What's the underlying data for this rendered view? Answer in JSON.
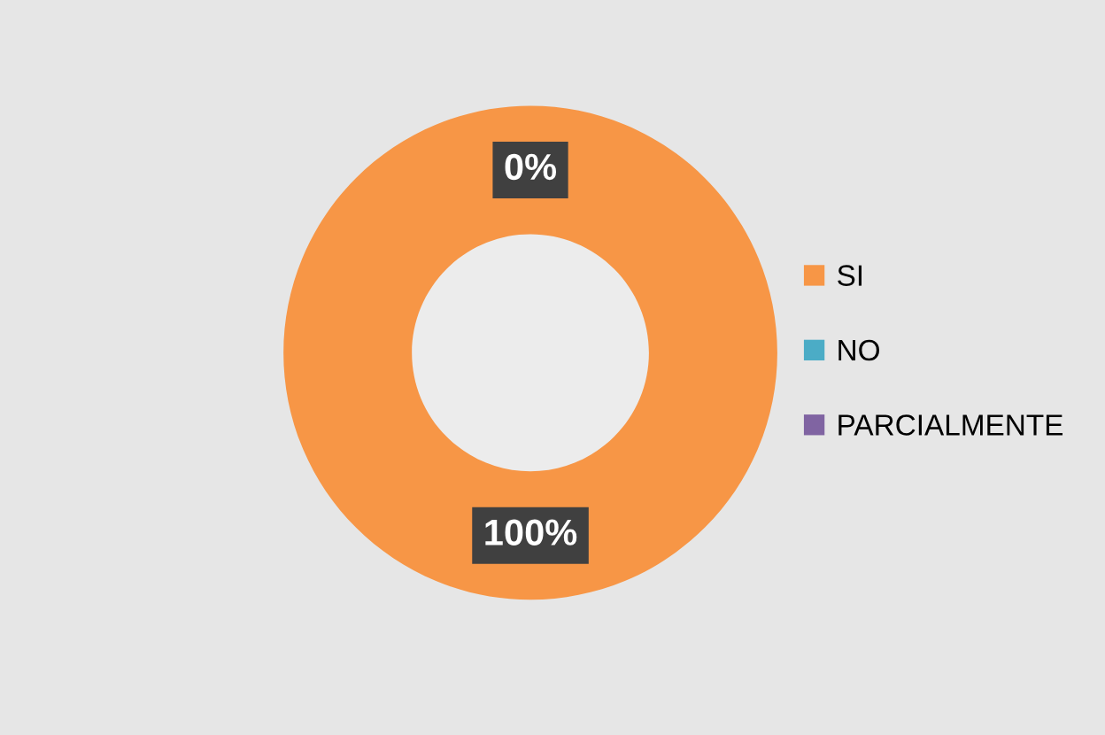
{
  "chart_data": {
    "type": "donut",
    "categories": [
      "SI",
      "NO",
      "PARCIALMENTE"
    ],
    "values": [
      100,
      0,
      0
    ],
    "colors": [
      "#f79646",
      "#4bacc6",
      "#8064a2"
    ],
    "value_labels": [
      "100%",
      "0%",
      null
    ],
    "legend": "right"
  }
}
